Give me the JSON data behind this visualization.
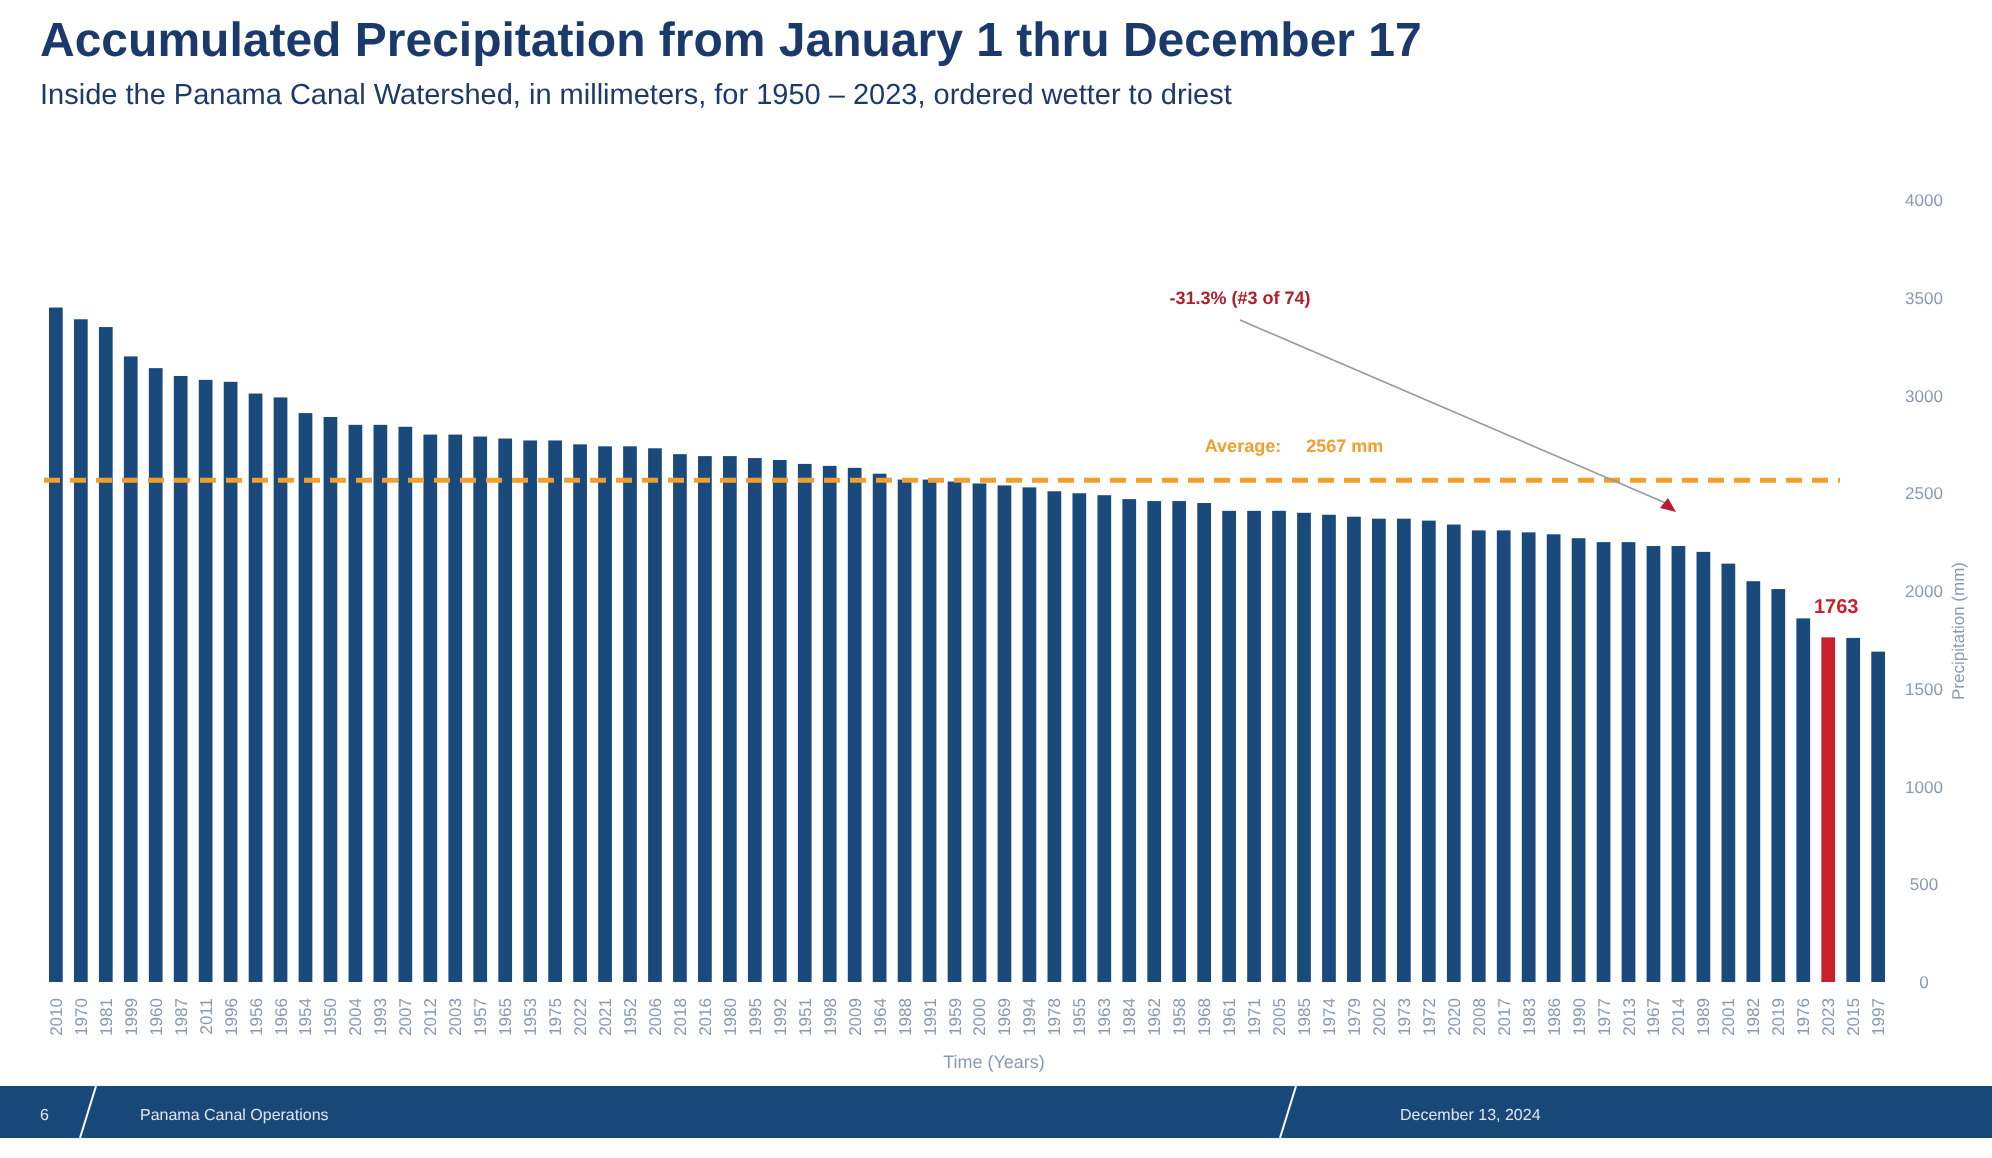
{
  "chart_data": {
    "type": "bar",
    "title": "Accumulated Precipitation from January 1 thru December 17",
    "subtitle": "Inside the Panama Canal Watershed, in millimeters, for 1950 – 2023, ordered wetter to driest",
    "xlabel": "Time (Years)",
    "ylabel": "Precipitation (mm)",
    "categories": [
      "2010",
      "1970",
      "1981",
      "1999",
      "1960",
      "1987",
      "2011",
      "1996",
      "1956",
      "1966",
      "1954",
      "1950",
      "2004",
      "1993",
      "2007",
      "2012",
      "2003",
      "1957",
      "1965",
      "1953",
      "1975",
      "2022",
      "2021",
      "1952",
      "2006",
      "2018",
      "2016",
      "1980",
      "1995",
      "1992",
      "1951",
      "1998",
      "2009",
      "1964",
      "1988",
      "1991",
      "1959",
      "2000",
      "1969",
      "1994",
      "1978",
      "1955",
      "1963",
      "1984",
      "1962",
      "1958",
      "1968",
      "1961",
      "1971",
      "2005",
      "1985",
      "1974",
      "1979",
      "2002",
      "1973",
      "1972",
      "2020",
      "2008",
      "2017",
      "1983",
      "1986",
      "1990",
      "1977",
      "2013",
      "1967",
      "2014",
      "1989",
      "2001",
      "1982",
      "2019",
      "1976",
      "2023",
      "2015",
      "1997"
    ],
    "values": [
      3450,
      3390,
      3350,
      3200,
      3140,
      3100,
      3080,
      3070,
      3010,
      2990,
      2910,
      2890,
      2850,
      2850,
      2840,
      2800,
      2800,
      2790,
      2780,
      2770,
      2770,
      2750,
      2740,
      2740,
      2730,
      2700,
      2690,
      2690,
      2680,
      2670,
      2650,
      2640,
      2630,
      2600,
      2570,
      2570,
      2560,
      2550,
      2540,
      2530,
      2510,
      2500,
      2490,
      2470,
      2460,
      2460,
      2450,
      2410,
      2410,
      2410,
      2400,
      2390,
      2380,
      2370,
      2370,
      2360,
      2340,
      2310,
      2310,
      2300,
      2290,
      2270,
      2250,
      2250,
      2230,
      2230,
      2200,
      2140,
      2050,
      2010,
      1860,
      1763,
      1760,
      1690
    ],
    "colors": [
      "#1a4a7c",
      "#1a4a7c",
      "#1a4a7c",
      "#1a4a7c",
      "#1a4a7c",
      "#1a4a7c",
      "#1a4a7c",
      "#1a4a7c",
      "#1a4a7c",
      "#1a4a7c",
      "#1a4a7c",
      "#1a4a7c",
      "#1a4a7c",
      "#1a4a7c",
      "#1a4a7c",
      "#1a4a7c",
      "#1a4a7c",
      "#1a4a7c",
      "#1a4a7c",
      "#1a4a7c",
      "#1a4a7c",
      "#1a4a7c",
      "#1a4a7c",
      "#1a4a7c",
      "#1a4a7c",
      "#1a4a7c",
      "#1a4a7c",
      "#1a4a7c",
      "#1a4a7c",
      "#1a4a7c",
      "#1a4a7c",
      "#1a4a7c",
      "#1a4a7c",
      "#1a4a7c",
      "#1a4a7c",
      "#1a4a7c",
      "#1a4a7c",
      "#1a4a7c",
      "#1a4a7c",
      "#1a4a7c",
      "#1a4a7c",
      "#1a4a7c",
      "#1a4a7c",
      "#1a4a7c",
      "#1a4a7c",
      "#1a4a7c",
      "#1a4a7c",
      "#1a4a7c",
      "#1a4a7c",
      "#1a4a7c",
      "#1a4a7c",
      "#1a4a7c",
      "#1a4a7c",
      "#1a4a7c",
      "#1a4a7c",
      "#1a4a7c",
      "#1a4a7c",
      "#1a4a7c",
      "#1a4a7c",
      "#1a4a7c",
      "#1a4a7c",
      "#1a4a7c",
      "#1a4a7c",
      "#1a4a7c",
      "#1a4a7c",
      "#1a4a7c",
      "#1a4a7c",
      "#1a4a7c",
      "#1a4a7c",
      "#1a4a7c",
      "#1a4a7c",
      "#c8202c",
      "#1a4a7c",
      "#1a4a7c"
    ],
    "value_labels": [
      null,
      null,
      null,
      null,
      null,
      null,
      null,
      null,
      null,
      null,
      null,
      null,
      null,
      null,
      null,
      null,
      null,
      null,
      null,
      null,
      null,
      null,
      null,
      null,
      null,
      null,
      null,
      null,
      null,
      null,
      null,
      null,
      null,
      null,
      null,
      null,
      null,
      null,
      null,
      null,
      null,
      null,
      null,
      null,
      null,
      null,
      null,
      null,
      null,
      null,
      null,
      null,
      null,
      null,
      null,
      null,
      null,
      null,
      null,
      null,
      null,
      null,
      null,
      null,
      null,
      null,
      null,
      null,
      null,
      null,
      null,
      "1763",
      null,
      null
    ],
    "ylim": [
      0,
      4000
    ],
    "yticks": [
      0,
      500,
      1000,
      1500,
      2000,
      2500,
      3000,
      3500,
      4000
    ],
    "grid": false,
    "ref_lines": [
      {
        "axis": "y",
        "value": 2567,
        "label": "Average:     2567 mm",
        "color": "#f0a030",
        "line_style": "dashed"
      }
    ],
    "annotations": [
      "-31.3% (#3 of 74)",
      "6",
      "Panama Canal Operations",
      "December 13, 2024"
    ]
  }
}
